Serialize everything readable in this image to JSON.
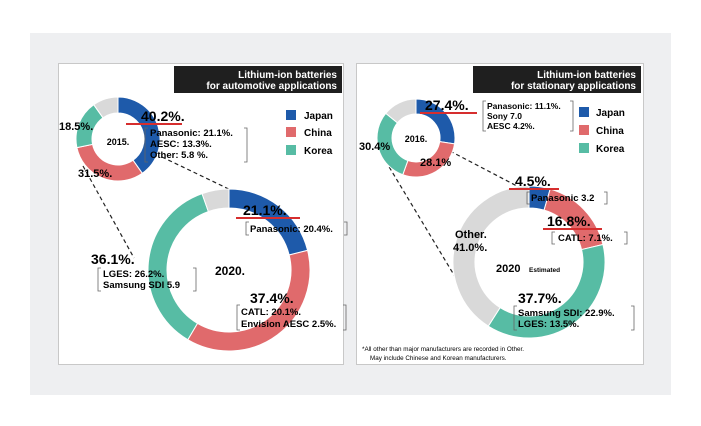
{
  "colors": {
    "japan": "#1e5aaa",
    "china": "#e06a6c",
    "korea": "#57bca4",
    "other": "#d9d9d9",
    "header_bg": "#1f1f1f",
    "header_text": "#ffffff",
    "underline": "#d62e2e",
    "frame": "#eeeff1"
  },
  "legend": {
    "japan": "Japan",
    "china": "China",
    "korea": "Korea"
  },
  "chart_data": [
    {
      "type": "pie",
      "panel": "automotive",
      "title": "Lithium-ion batteries",
      "subtitle": "for automotive applications",
      "charts": [
        {
          "center_label": "2015.",
          "slices": [
            {
              "name": "Japan",
              "value": 40.2,
              "label": "40.2%.",
              "detail": [
                "Panasonic: 21.1%.",
                "AESC: 13.3%.",
                "Other: 5.8 %."
              ]
            },
            {
              "name": "China",
              "value": 31.5,
              "label": "31.5%.",
              "detail": []
            },
            {
              "name": "Korea",
              "value": 18.5,
              "label": "18.5%.",
              "detail": []
            },
            {
              "name": "Other",
              "value": 9.8,
              "label": "",
              "detail": []
            }
          ]
        },
        {
          "center_label": "2020.",
          "slices": [
            {
              "name": "Japan",
              "value": 21.1,
              "label": "21.1%.",
              "detail": [
                "Panasonic: 20.4%."
              ]
            },
            {
              "name": "China",
              "value": 37.4,
              "label": "37.4%.",
              "detail": [
                "CATL: 20.1%.",
                "Envision AESC 2.5%."
              ]
            },
            {
              "name": "Korea",
              "value": 36.1,
              "label": "36.1%.",
              "detail": [
                "LGES: 26.2%.",
                "Samsung SDI 5.9"
              ]
            },
            {
              "name": "Other",
              "value": 5.4,
              "label": "",
              "detail": []
            }
          ]
        }
      ]
    },
    {
      "type": "pie",
      "panel": "stationary",
      "title": "Lithium-ion batteries",
      "subtitle": "for stationary applications",
      "charts": [
        {
          "center_label": "2016.",
          "slices": [
            {
              "name": "Japan",
              "value": 27.4,
              "label": "27.4%.",
              "detail": [
                "Panasonic: 11.1%.",
                "Sony 7.0",
                "AESC 4.2%."
              ]
            },
            {
              "name": "China",
              "value": 28.1,
              "label": "28.1%",
              "detail": []
            },
            {
              "name": "Korea",
              "value": 30.4,
              "label": "30.4%",
              "detail": []
            },
            {
              "name": "Other",
              "value": 14.1,
              "label": "",
              "detail": []
            }
          ]
        },
        {
          "center_label": "2020",
          "center_sub": "Estimated",
          "slices": [
            {
              "name": "Japan",
              "value": 4.5,
              "label": "4.5%.",
              "detail": [
                "Panasonic 3.2"
              ]
            },
            {
              "name": "China",
              "value": 16.8,
              "label": "16.8%.",
              "detail": [
                "CATL: 7.1%."
              ]
            },
            {
              "name": "Korea",
              "value": 37.7,
              "label": "37.7%.",
              "detail": [
                "Samsung SDI: 22.9%.",
                "LGES: 13.5%."
              ]
            },
            {
              "name": "Other",
              "value": 41.0,
              "label": "41.0%.",
              "label_prefix": "Other.",
              "detail": []
            }
          ]
        }
      ],
      "footnote": [
        "*All other than major manufacturers are recorded in Other.",
        "May include Chinese and Korean manufacturers."
      ]
    }
  ]
}
